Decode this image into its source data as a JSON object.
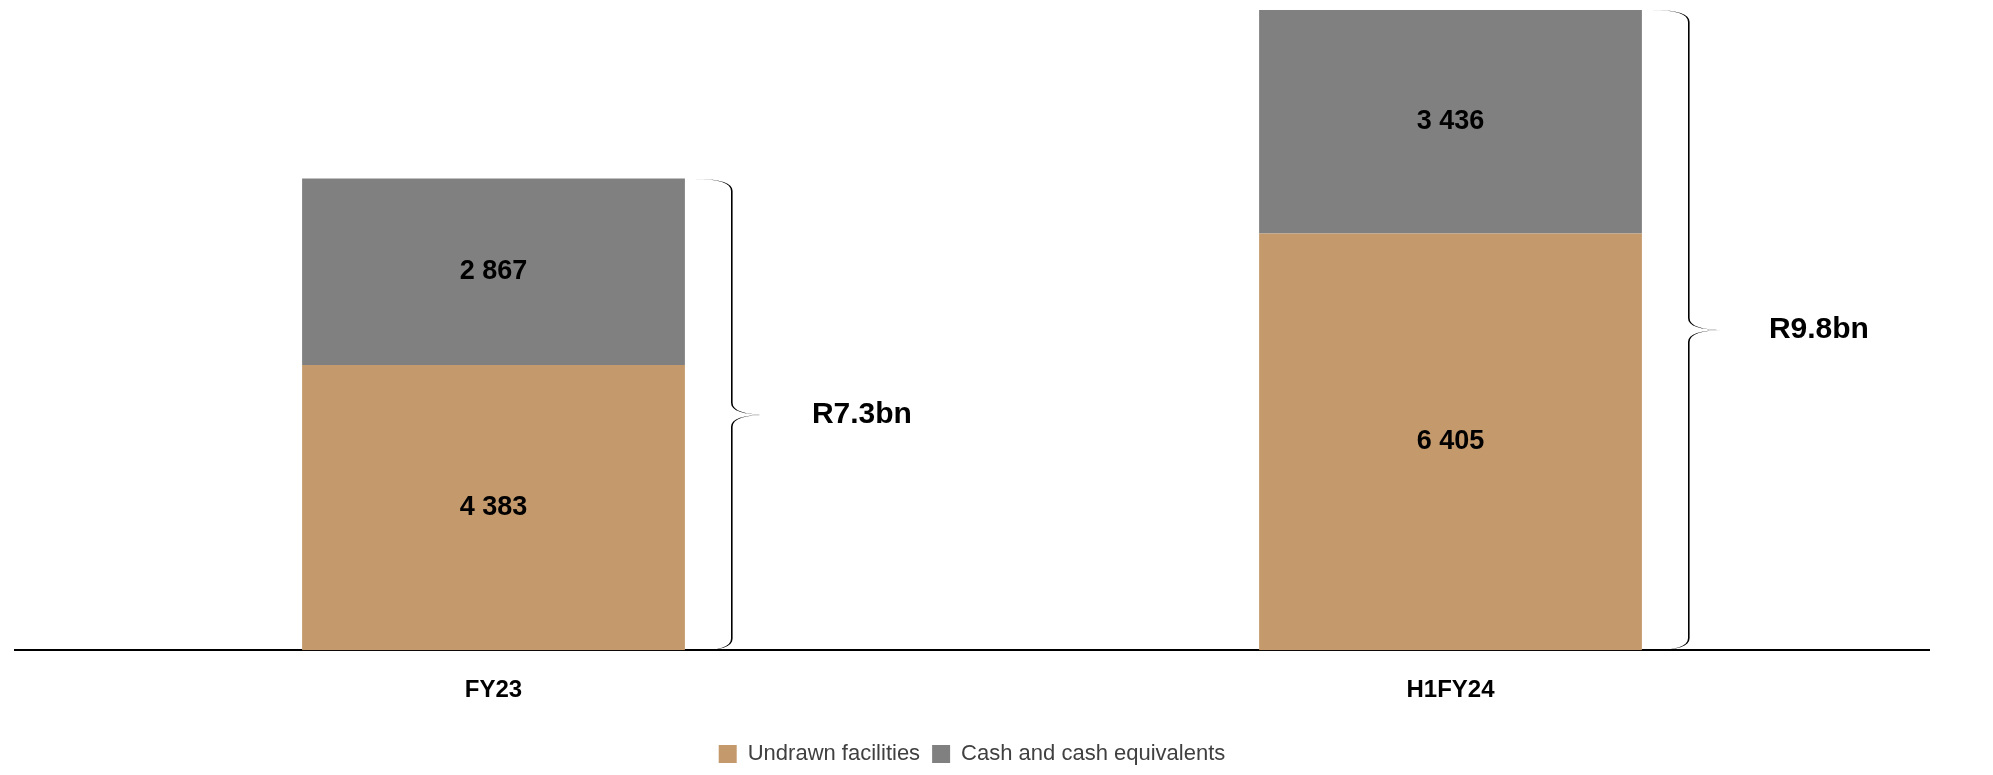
{
  "chart_data": {
    "type": "bar",
    "stacked": true,
    "categories": [
      "FY23",
      "H1FY24"
    ],
    "series": [
      {
        "name": "Undrawn facilities",
        "color": "#c4996c",
        "values": [
          4383,
          6405
        ]
      },
      {
        "name": "Cash and cash equivalents",
        "color": "#808080",
        "values": [
          2867,
          3436
        ]
      }
    ],
    "data_labels": true,
    "annotations": [
      "R7.3bn",
      "R9.8bn"
    ],
    "legend": "bottom",
    "grid": false
  }
}
